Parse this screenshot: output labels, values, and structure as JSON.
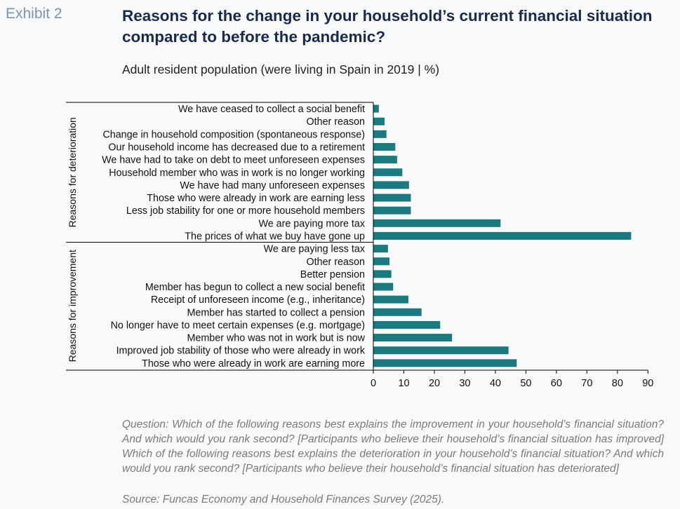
{
  "header": {
    "exhibit": "Exhibit 2",
    "title": "Reasons for the change in your household’s current financial situation compared to before the pandemic?",
    "subtitle": "Adult resident population (were living in Spain in 2019 | %)"
  },
  "footer": {
    "note": "Question: Which of the following reasons best explains the improvement in your household’s financial situation? And which would you rank second? [Participants who believe their household’s financial situation has improved] Which of the following reasons best explains the deterioration in your household’s financial situation? And which would you rank second? [Participants who believe their household’s financial situation has deteriorated]",
    "source": "Source: Funcas Economy and Household Finances Survey (2025)."
  },
  "chart_data": {
    "type": "bar",
    "orientation": "horizontal",
    "bar_color": "#1a7a80",
    "xlim": [
      0,
      90
    ],
    "xticks": [
      0,
      10,
      20,
      30,
      40,
      50,
      60,
      70,
      80,
      90
    ],
    "groups": [
      {
        "label": "Reasons for deterioration",
        "categories": [
          "We have ceased to collect a social benefit",
          "Other reason",
          "Change in household composition (spontaneous response)",
          "Our household income has decreased due to a retirement",
          "We have had to take on debt to meet unforeseen expenses",
          "Household member who was in work is no longer working",
          "We have had many unforeseen expenses",
          "Those who were already in work are earning less",
          "Less job stability for one or more household members",
          "We are paying more tax",
          "The prices of what we buy have gone up"
        ],
        "values": [
          1.8,
          3.7,
          4.3,
          7.2,
          7.8,
          9.5,
          11.7,
          12.3,
          12.3,
          41.7,
          84.5
        ]
      },
      {
        "label": "Reasons for improvement",
        "categories": [
          "We are paying less tax",
          "Other reason",
          "Better pension",
          "Member has begun to collect a new social benefit",
          "Receipt of unforeseen income (e.g., inheritance)",
          "Member has started to collect a pension",
          "No longer have to meet certain expenses (e.g. mortgage)",
          "Member who was not in work but is now",
          "Improved job stability of those who were already in work",
          "Those who were already in work are earning more"
        ],
        "values": [
          4.8,
          5.3,
          5.9,
          6.5,
          11.5,
          15.8,
          21.9,
          25.8,
          44.3,
          47.0
        ]
      }
    ]
  }
}
